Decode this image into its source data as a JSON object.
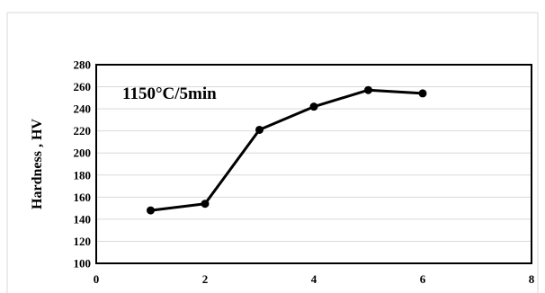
{
  "chart_data": {
    "type": "line",
    "title": "",
    "xlabel": "",
    "ylabel": "Hardness , HV",
    "annotation": "1150°C/5min",
    "xlim": [
      0,
      8
    ],
    "ylim": [
      100,
      280
    ],
    "x_ticks": [
      "0",
      "2",
      "4",
      "6",
      "8"
    ],
    "y_ticks": [
      "100",
      "120",
      "140",
      "160",
      "180",
      "200",
      "220",
      "240",
      "260",
      "280"
    ],
    "grid": "horizontal",
    "series": [
      {
        "x": [
          1,
          2,
          3,
          4,
          5,
          6
        ],
        "y": [
          148,
          154,
          221,
          242,
          257,
          254
        ],
        "color": "#000000",
        "marker": "circle"
      }
    ]
  }
}
